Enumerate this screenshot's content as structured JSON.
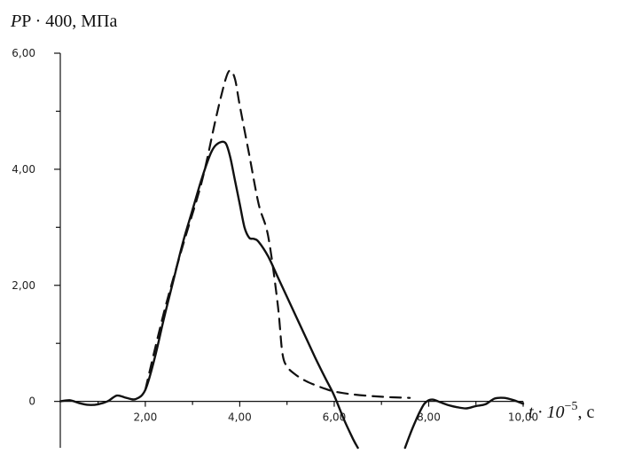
{
  "chart_data": {
    "type": "line",
    "y_axis_title": {
      "prefix": "P · 400, ",
      "unit": "МПа"
    },
    "x_axis_title": {
      "base": "t · 10",
      "exponent": "−5",
      "suffix": ", с"
    },
    "xlim": [
      0.2,
      10.0
    ],
    "ylim": [
      -0.8,
      6.0
    ],
    "x_ticks": [
      {
        "value": 2,
        "label": "2,00"
      },
      {
        "value": 4,
        "label": "4,00"
      },
      {
        "value": 6,
        "label": "6,00"
      },
      {
        "value": 8,
        "label": "8,00"
      },
      {
        "value": 10,
        "label": "10,00"
      }
    ],
    "x_minor_ticks": [
      1,
      3,
      5,
      7,
      9
    ],
    "y_ticks": [
      {
        "value": 0,
        "label": "0"
      },
      {
        "value": 2,
        "label": "2,00"
      },
      {
        "value": 4,
        "label": "4,00"
      },
      {
        "value": 6,
        "label": "6,00"
      }
    ],
    "y_minor_ticks": [
      1,
      3,
      5
    ],
    "grid": false,
    "legend": "none",
    "series": [
      {
        "style": "solid",
        "color": "#111111",
        "x": [
          0.2,
          0.4,
          0.6,
          0.8,
          1.0,
          1.2,
          1.4,
          1.6,
          1.8,
          2.0,
          2.2,
          2.4,
          2.6,
          2.8,
          3.0,
          3.2,
          3.4,
          3.55,
          3.7,
          3.8,
          3.9,
          4.0,
          4.1,
          4.2,
          4.3,
          4.4,
          4.6,
          4.8,
          5.0,
          5.2,
          5.4,
          5.6,
          5.8,
          6.0,
          6.2,
          6.4,
          6.5
        ],
        "y": [
          0.0,
          0.02,
          -0.03,
          -0.06,
          -0.05,
          0.0,
          0.1,
          0.06,
          0.04,
          0.2,
          0.75,
          1.45,
          2.1,
          2.75,
          3.3,
          3.85,
          4.3,
          4.45,
          4.45,
          4.2,
          3.8,
          3.4,
          3.0,
          2.82,
          2.8,
          2.75,
          2.5,
          2.15,
          1.8,
          1.45,
          1.1,
          0.75,
          0.42,
          0.1,
          -0.3,
          -0.65,
          -0.8
        ]
      },
      {
        "style": "solid",
        "color": "#111111",
        "x": [
          7.5,
          7.6,
          7.7,
          7.8,
          7.9,
          8.0,
          8.1,
          8.2,
          8.4,
          8.6,
          8.8,
          9.0,
          9.2,
          9.4,
          9.6,
          9.8,
          10.0
        ],
        "y": [
          -0.8,
          -0.58,
          -0.38,
          -0.2,
          -0.05,
          0.02,
          0.03,
          0.0,
          -0.06,
          -0.1,
          -0.12,
          -0.08,
          -0.05,
          0.05,
          0.06,
          0.02,
          -0.04
        ]
      },
      {
        "style": "dashed",
        "color": "#111111",
        "x": [
          2.0,
          2.4,
          2.8,
          3.2,
          3.5,
          3.7,
          3.8,
          3.9,
          4.0,
          4.2,
          4.4,
          4.6,
          4.8,
          4.9,
          5.0,
          5.2,
          5.4,
          5.6,
          5.8,
          6.0,
          6.4,
          7.0,
          7.6
        ],
        "y": [
          0.2,
          1.55,
          2.7,
          3.8,
          4.9,
          5.55,
          5.7,
          5.55,
          5.1,
          4.25,
          3.4,
          2.85,
          1.7,
          0.85,
          0.6,
          0.45,
          0.35,
          0.28,
          0.22,
          0.17,
          0.12,
          0.08,
          0.06
        ]
      }
    ]
  }
}
